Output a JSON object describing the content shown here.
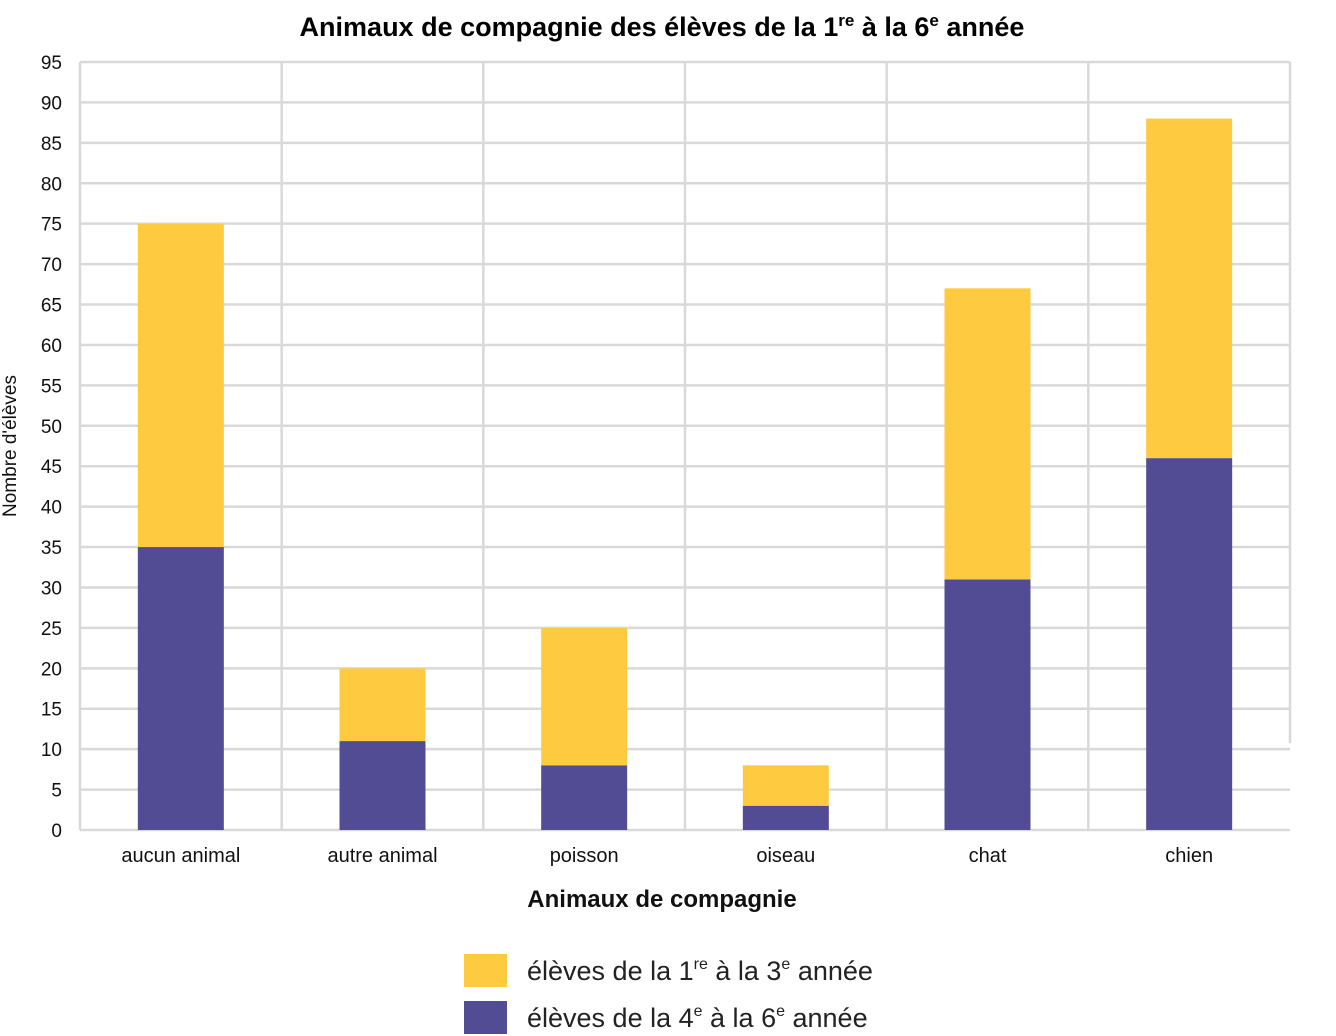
{
  "chart_data": {
    "type": "bar",
    "stacked": true,
    "title_parts": [
      "Animaux de compagnie des élèves de la 1",
      "re",
      " à la 6",
      "e",
      " année"
    ],
    "xlabel": "Animaux de compagnie",
    "ylabel": "Nombre d'élèves",
    "categories": [
      "aucun animal",
      "autre animal",
      "poisson",
      "oiseau",
      "chat",
      "chien"
    ],
    "ylim": [
      0,
      95
    ],
    "yticks": [
      0,
      5,
      10,
      15,
      20,
      25,
      30,
      35,
      40,
      45,
      50,
      55,
      60,
      65,
      70,
      75,
      80,
      85,
      90,
      95
    ],
    "grid": true,
    "legend_position": "bottom",
    "series": [
      {
        "name_parts": [
          "élèves de la 4",
          "e",
          " à la 6",
          "e",
          " année"
        ],
        "color": "#514c94",
        "values": [
          35,
          11,
          8,
          3,
          31,
          46
        ]
      },
      {
        "name_parts": [
          "élèves de la 1",
          "re",
          " à la 3",
          "e",
          " année"
        ],
        "color": "#fdca40",
        "values": [
          40,
          9,
          17,
          5,
          36,
          42
        ]
      }
    ],
    "legend_order": [
      1,
      0
    ],
    "grid_color": "#d9d9d9"
  }
}
